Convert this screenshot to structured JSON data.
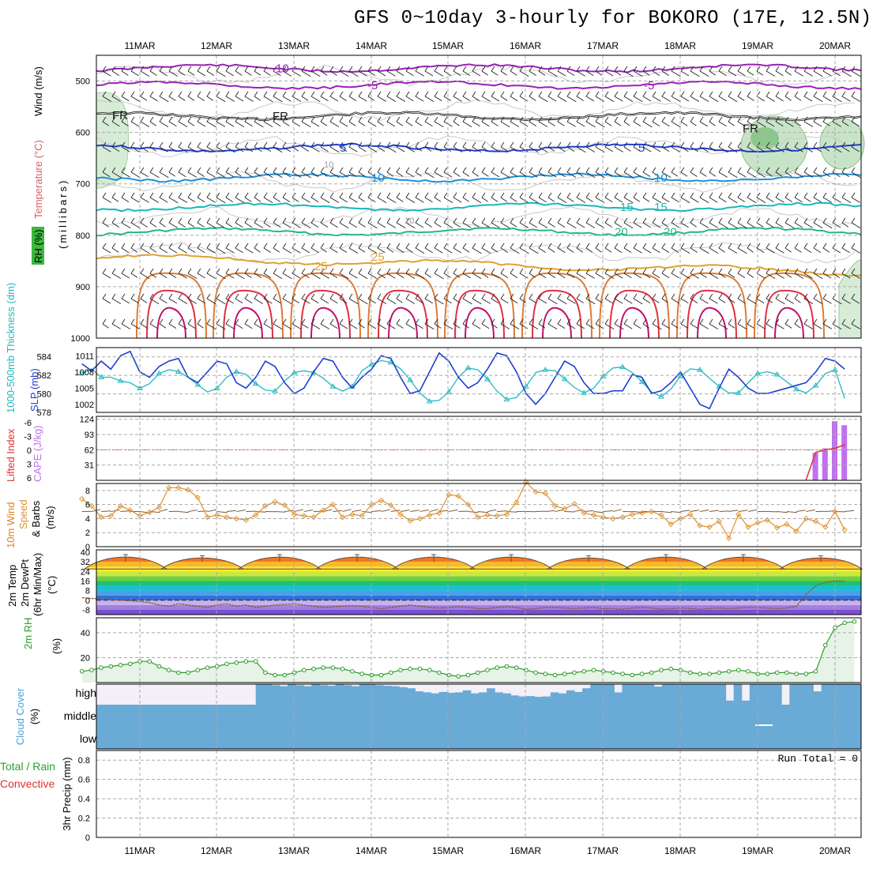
{
  "title": "GFS 0~10day 3-hourly for BOKORO (17E, 12.5N)",
  "colors": {
    "grid": "#a8a8a8",
    "slp": "#1f3fcf",
    "thickness": "#22b8c0",
    "cape": "#c070f0",
    "lifted": "#e03030",
    "wind_speed": "#e0902a",
    "rh": "#2a9a2a",
    "cloud": "#6aaad6",
    "high_cloud_bg": "#f4f0f8"
  },
  "chart_data": [
    {
      "id": "upper_air",
      "type": "contour",
      "ylabel_parts": [
        "RH (%)",
        "Temperature (°C)",
        "Wind (m/s)",
        "(millibars)"
      ],
      "yticks": [
        500,
        600,
        700,
        800,
        900,
        1000
      ],
      "ylim": [
        450,
        1000
      ],
      "x_dates": [
        "11MAR",
        "12MAR",
        "13MAR",
        "14MAR",
        "15MAR",
        "16MAR",
        "17MAR",
        "18MAR",
        "19MAR",
        "20MAR"
      ],
      "isotherms": [
        {
          "label": "-10",
          "pressure": 475,
          "color": "#9a20b8"
        },
        {
          "label": "-5",
          "pressure": 508,
          "color": "#9a20b8"
        },
        {
          "label": "FR",
          "pressure": 568,
          "color": "#111111"
        },
        {
          "label": "5",
          "pressure": 630,
          "color": "#1f3fcf"
        },
        {
          "label": "10",
          "pressure": 688,
          "color": "#1e8fd8"
        },
        {
          "label": "15",
          "pressure": 745,
          "color": "#18b8b8"
        },
        {
          "label": "20",
          "pressure": 793,
          "color": "#20b888"
        },
        {
          "label": "25",
          "pressure": 842,
          "color": "#e0a030"
        }
      ],
      "rh_label": "10"
    },
    {
      "id": "slp_thickness",
      "type": "line",
      "ylabel_left": "1000-500mb Thickness (dm)",
      "ylabel_right": "SLP (mb)",
      "yticks_thickness": [
        584,
        582,
        580,
        578
      ],
      "yticks_slp": [
        1011,
        1008,
        1005,
        1002
      ],
      "slp": [
        1009.5,
        1008.2,
        1010,
        1008.5,
        1011,
        1011.8,
        1008,
        1007,
        1009,
        1010,
        1010.5,
        1007,
        1006,
        1008,
        1010,
        1009.5,
        1006,
        1005,
        1007,
        1010,
        1009,
        1006,
        1004,
        1005,
        1008,
        1010.5,
        1010,
        1007,
        1005,
        1007,
        1008.5,
        1011,
        1010.5,
        1007,
        1004,
        1004.5,
        1008,
        1011.5,
        1010,
        1007,
        1005,
        1006,
        1008.5,
        1011.5,
        1011,
        1008,
        1004,
        1002,
        1004,
        1007,
        1010,
        1009,
        1006,
        1004,
        1004,
        1004.5,
        1004.5,
        1007.5,
        1007,
        1004,
        1004.5,
        1006,
        1008,
        1005,
        1002,
        1001.2,
        1005,
        1008.5,
        1007,
        1005,
        1004,
        1004,
        1004.5,
        1005,
        1005.5,
        1006,
        1008,
        1010.5,
        1010,
        1008.5
      ],
      "thickness": [
        582.2,
        582.7,
        581.8,
        581.8,
        581.4,
        581.2,
        580.6,
        581.1,
        582.2,
        582.6,
        582.4,
        581.8,
        581,
        580.2,
        580.6,
        581.8,
        582.4,
        582.1,
        581.1,
        580.4,
        580.3,
        581.4,
        582.3,
        582.5,
        582.3,
        581.7,
        580.8,
        580.3,
        580.8,
        582.5,
        583.2,
        583.6,
        583.4,
        582.7,
        581.5,
        580.1,
        579.2,
        579.3,
        580.2,
        581.8,
        582.8,
        582.6,
        581.6,
        580.3,
        579.4,
        579.6,
        580.8,
        582.3,
        582.6,
        582.5,
        581.6,
        580.7,
        580.1,
        580.6,
        581.9,
        582.8,
        582.9,
        582.3,
        581.3,
        580.2,
        579.7,
        580.5,
        581.9,
        582.7,
        582.6,
        581.7,
        580.8,
        580.1,
        580.1,
        581.2,
        582.2,
        582.4,
        582.1,
        581.3,
        580.5,
        580.1,
        580.9,
        582.2,
        582.6,
        579.5
      ]
    },
    {
      "id": "cape_li",
      "type": "bar+line",
      "ylabel_left": "Lifted Index",
      "ylabel_right": "CAPE (J/kg)",
      "yticks_li": [
        "-6",
        "-3",
        "0",
        "3",
        "6"
      ],
      "yticks_cape": [
        124,
        93,
        62,
        31
      ],
      "cape_bars": [
        {
          "index": 76,
          "value": 56
        },
        {
          "index": 77,
          "value": 65
        },
        {
          "index": 78,
          "value": 120
        },
        {
          "index": 79,
          "value": 112
        }
      ],
      "lifted_index": [
        {
          "index": 75,
          "value": 6
        },
        {
          "index": 76,
          "value": 0.5
        },
        {
          "index": 77,
          "value": 0
        },
        {
          "index": 78,
          "value": -0.3
        },
        {
          "index": 79,
          "value": -1
        }
      ]
    },
    {
      "id": "wind10m",
      "type": "line",
      "ylabel_parts": [
        "10m Wind",
        "Speed",
        "& Barbs",
        "(m/s)"
      ],
      "yticks": [
        0,
        2,
        4,
        6,
        8
      ],
      "ylim": [
        0,
        9
      ],
      "speed": [
        6.8,
        5.8,
        4.2,
        4.4,
        5.8,
        5.2,
        4.4,
        4.9,
        5.6,
        8.4,
        8.4,
        8.1,
        7.0,
        4.2,
        4.5,
        4.2,
        4.0,
        3.8,
        4.5,
        5.8,
        6.4,
        5.9,
        4.6,
        4.4,
        4.2,
        5.2,
        6.0,
        4.2,
        4.6,
        4.4,
        6.0,
        6.6,
        5.9,
        4.6,
        3.7,
        4.0,
        4.5,
        4.8,
        7.4,
        7.2,
        6.0,
        4.2,
        4.5,
        4.4,
        4.6,
        6.3,
        9.2,
        7.8,
        7.6,
        5.8,
        5.4,
        6.1,
        4.8,
        4.5,
        4.2,
        4.0,
        4.2,
        4.6,
        4.8,
        5.0,
        4.5,
        3.2,
        4.0,
        4.6,
        3.0,
        2.8,
        3.6,
        1.2,
        4.6,
        2.8,
        3.4,
        3.8,
        2.7,
        3.2,
        2.2,
        4.0,
        3.6,
        2.8,
        5.0,
        2.4
      ],
      "barbs": true
    },
    {
      "id": "temp2m",
      "type": "band",
      "ylabel_parts": [
        "2m Temp",
        "2m DewPt",
        "(6hr Min/Max)",
        "(°C)"
      ],
      "yticks": [
        40,
        32,
        24,
        16,
        8,
        0,
        -8
      ],
      "ylim": [
        -12,
        42
      ],
      "temp_max_days": [
        38,
        37,
        38,
        38,
        38,
        38,
        37,
        38,
        38,
        37
      ],
      "temp_min": 26,
      "dewpoint": [
        2,
        1.5,
        1,
        0.5,
        0,
        -0.5,
        -1,
        -2,
        -4,
        -5,
        -3,
        -4,
        -5,
        -6,
        -4,
        -3,
        -5,
        -4,
        -6,
        -5,
        -4,
        -3.5,
        -3,
        -4,
        -5,
        -6,
        -5.5,
        -5,
        -4.5,
        -5,
        -6,
        -7,
        -6,
        -5,
        -4,
        -5,
        -6,
        -6.5,
        -6,
        -5.5,
        -6,
        -7,
        -7,
        -6,
        -5.5,
        -6,
        -7.5,
        -7,
        -6,
        -6,
        -6.5,
        -7,
        -6.5,
        -6,
        -7,
        -7,
        -7.5,
        -6.5,
        -6,
        -6.5,
        -7.5,
        -7,
        -6.5,
        -7,
        -7.5,
        -7,
        -6.5,
        -7,
        -6.5,
        -6,
        -6,
        -6.5,
        -7,
        -6.5,
        -5,
        5,
        12,
        15,
        16,
        16
      ]
    },
    {
      "id": "rh2m",
      "type": "area",
      "ylabel_parts": [
        "2m RH",
        "(%)"
      ],
      "yticks": [
        20,
        40
      ],
      "ylim": [
        0,
        52
      ],
      "values": [
        9,
        10,
        12,
        13,
        14,
        15,
        17,
        17,
        13,
        10,
        8,
        8,
        10,
        12,
        13,
        15,
        16,
        17,
        17,
        8,
        6,
        6,
        8,
        10,
        11,
        12,
        12,
        11,
        9,
        7,
        6,
        6,
        8,
        10,
        11,
        11,
        10,
        8,
        6,
        5,
        6,
        8,
        10,
        12,
        13,
        12,
        10,
        8,
        7,
        6,
        7,
        8,
        9,
        10,
        9,
        8,
        7,
        6,
        7,
        8,
        10,
        11,
        10,
        8,
        7,
        7,
        8,
        9,
        10,
        9,
        7,
        7,
        8,
        8,
        7,
        7,
        9,
        30,
        44,
        48,
        49
      ]
    },
    {
      "id": "cloud",
      "type": "coverage",
      "ylabel_parts": [
        "Cloud Cover",
        "(%)"
      ],
      "levels": [
        "high",
        "middle",
        "low"
      ],
      "high": [
        0,
        0,
        0,
        0,
        0,
        0,
        0,
        0,
        0,
        0,
        0,
        0,
        0,
        0,
        0,
        0,
        0,
        0,
        0,
        0,
        100,
        100,
        95,
        90,
        98,
        95,
        90,
        100,
        95,
        92,
        98,
        95,
        90,
        100,
        98,
        95,
        92,
        90,
        85,
        80,
        65,
        60,
        55,
        62,
        58,
        60,
        70,
        55,
        60,
        80,
        60,
        55,
        45,
        40,
        42,
        38,
        40,
        60,
        55,
        70,
        62,
        80,
        100,
        100,
        100,
        60,
        100,
        100,
        100,
        100,
        88,
        100,
        100,
        100,
        100,
        100,
        100,
        100,
        100,
        20,
        100,
        20,
        100,
        100,
        100,
        100,
        0,
        100,
        100,
        100,
        65,
        100,
        100,
        100,
        100,
        100
      ],
      "middle": 100,
      "low": 100
    },
    {
      "id": "precip",
      "type": "bar",
      "ylabel_parts": [
        "Total / Rain",
        "Convective",
        "3hr Precip (mm)"
      ],
      "yticks": [
        "0",
        "0.2",
        "0.4",
        "0.6",
        "0.8"
      ],
      "ylim": [
        0,
        0.9
      ],
      "values": [],
      "run_total_label": "Run Total = 0"
    }
  ]
}
